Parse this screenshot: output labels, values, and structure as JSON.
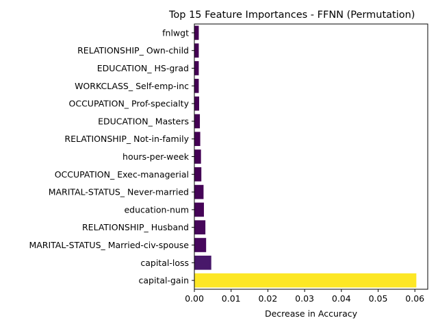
{
  "chart_data": {
    "type": "bar",
    "orientation": "horizontal",
    "title": "Top 15 Feature Importances - FFNN (Permutation)",
    "xlabel": "Decrease in Accuracy",
    "ylabel": "",
    "xlim": [
      0,
      0.0635
    ],
    "xticks": [
      "0.00",
      "0.01",
      "0.02",
      "0.03",
      "0.04",
      "0.05",
      "0.06"
    ],
    "categories": [
      "fnlwgt",
      "RELATIONSHIP_ Own-child",
      "EDUCATION_ HS-grad",
      "WORKCLASS_ Self-emp-inc",
      "OCCUPATION_ Prof-specialty",
      "EDUCATION_ Masters",
      "RELATIONSHIP_ Not-in-family",
      "hours-per-week",
      "OCCUPATION_ Exec-managerial",
      "MARITAL-STATUS_ Never-married",
      "education-num",
      "RELATIONSHIP_ Husband",
      "MARITAL-STATUS_ Married-civ-spouse",
      "capital-loss",
      "capital-gain"
    ],
    "values": [
      0.0012,
      0.0012,
      0.0012,
      0.0012,
      0.0013,
      0.0015,
      0.0016,
      0.0018,
      0.0019,
      0.0025,
      0.0026,
      0.003,
      0.0032,
      0.0046,
      0.0604
    ],
    "colors": [
      "#440154",
      "#440154",
      "#440154",
      "#440154",
      "#440154",
      "#440154",
      "#440154",
      "#440154",
      "#440154",
      "#450457",
      "#450457",
      "#46075a",
      "#46085c",
      "#48186a",
      "#fde725"
    ],
    "grid": false,
    "legend": "none"
  }
}
